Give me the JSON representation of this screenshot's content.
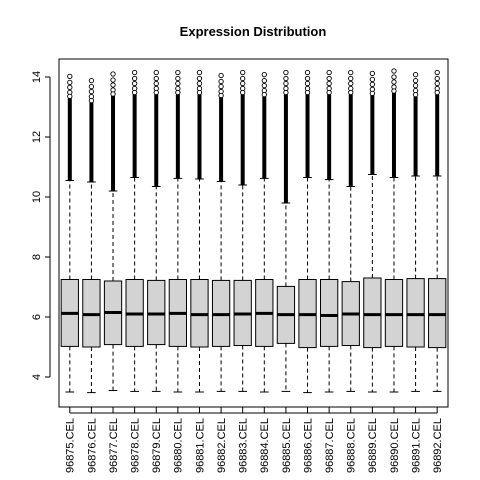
{
  "chart_data": {
    "type": "boxplot",
    "title": "Expression Distribution",
    "xlabel": "",
    "ylabel": "",
    "ylim": [
      3.0,
      14.6
    ],
    "yticks": [
      4,
      6,
      8,
      10,
      12,
      14
    ],
    "grid": false,
    "categories": [
      "96875.CEL",
      "96876.CEL",
      "96877.CEL",
      "96878.CEL",
      "96879.CEL",
      "96880.CEL",
      "96881.CEL",
      "96882.CEL",
      "96883.CEL",
      "96884.CEL",
      "96885.CEL",
      "96886.CEL",
      "96887.CEL",
      "96888.CEL",
      "96889.CEL",
      "96890.CEL",
      "96891.CEL",
      "96892.CEL"
    ],
    "q1": [
      5.02,
      5.0,
      5.08,
      5.02,
      5.08,
      5.02,
      5.0,
      5.02,
      5.05,
      5.02,
      5.12,
      4.98,
      5.02,
      5.05,
      4.98,
      5.02,
      5.0,
      4.98
    ],
    "median": [
      6.12,
      6.08,
      6.15,
      6.1,
      6.1,
      6.12,
      6.08,
      6.08,
      6.1,
      6.12,
      6.08,
      6.08,
      6.05,
      6.1,
      6.08,
      6.08,
      6.08,
      6.08
    ],
    "q3": [
      7.25,
      7.25,
      7.2,
      7.25,
      7.22,
      7.25,
      7.25,
      7.22,
      7.22,
      7.25,
      7.02,
      7.25,
      7.25,
      7.18,
      7.3,
      7.25,
      7.28,
      7.28
    ],
    "whisker_low": [
      3.5,
      3.48,
      3.55,
      3.52,
      3.52,
      3.5,
      3.5,
      3.52,
      3.52,
      3.5,
      3.52,
      3.48,
      3.5,
      3.52,
      3.5,
      3.5,
      3.52,
      3.52
    ],
    "whisker_high": [
      10.55,
      10.5,
      10.2,
      10.65,
      10.35,
      10.62,
      10.6,
      10.52,
      10.4,
      10.62,
      9.8,
      10.65,
      10.58,
      10.35,
      10.75,
      10.65,
      10.7,
      10.7
    ],
    "outlier_max": [
      14.02,
      13.88,
      14.1,
      14.15,
      14.15,
      14.15,
      14.15,
      14.05,
      14.15,
      14.08,
      14.15,
      14.15,
      14.15,
      14.15,
      14.12,
      14.2,
      14.08,
      14.15
    ],
    "box_color": "#d3d3d3",
    "line_color": "#000000"
  }
}
